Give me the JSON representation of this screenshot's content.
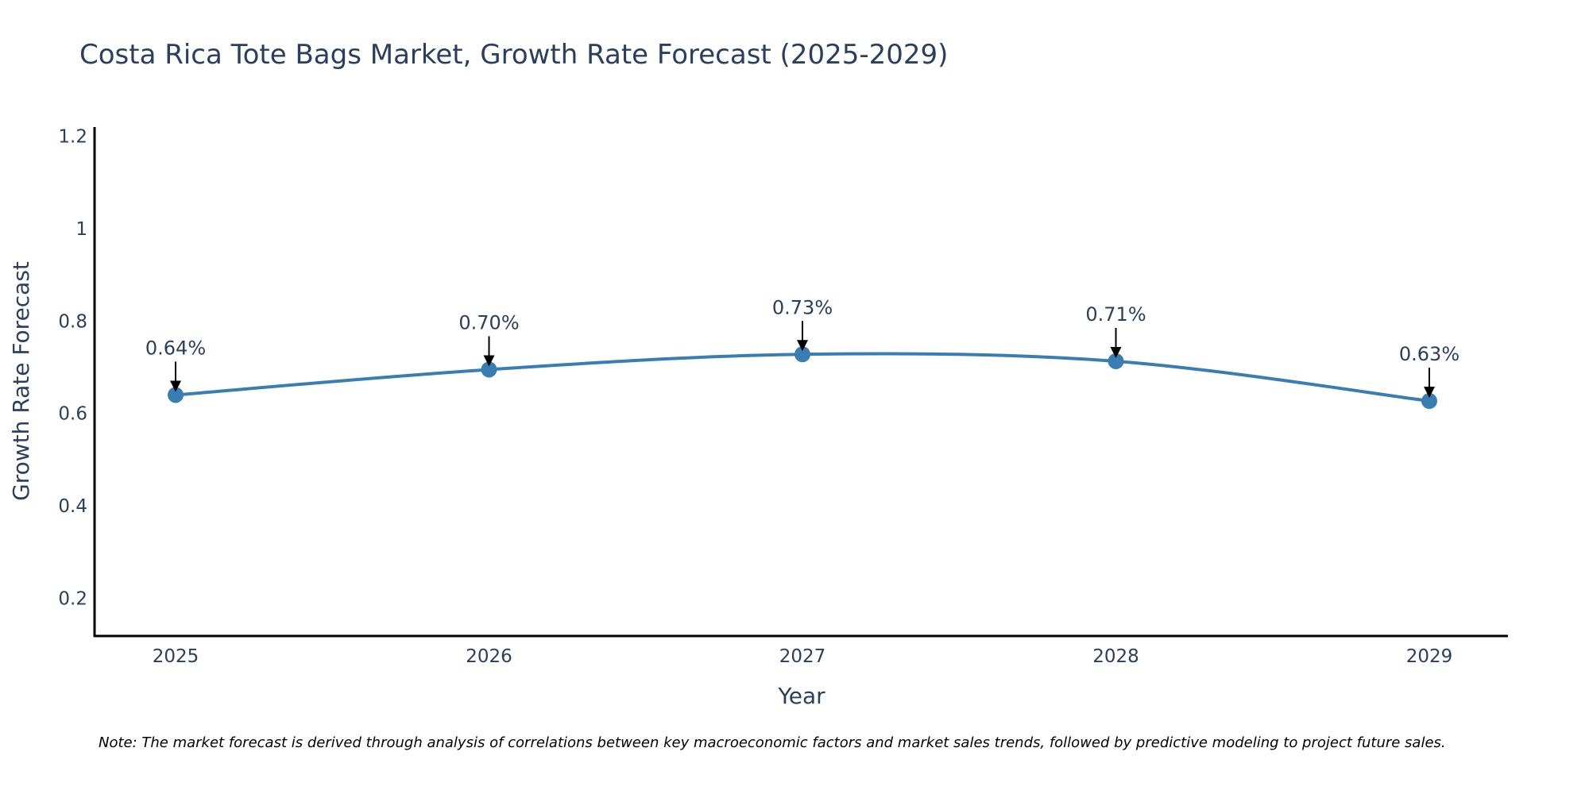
{
  "chart_data": {
    "type": "line",
    "title": "Costa Rica Tote Bags Market, Growth Rate Forecast (2025-2029)",
    "xlabel": "Year",
    "ylabel": "Growth Rate Forecast",
    "categories": [
      "2025",
      "2026",
      "2027",
      "2028",
      "2029"
    ],
    "series": [
      {
        "name": "Growth Rate Forecast",
        "values": [
          0.64,
          0.695,
          0.728,
          0.713,
          0.627
        ],
        "labels": [
          "0.64%",
          "0.70%",
          "0.73%",
          "0.71%",
          "0.63%"
        ],
        "color": "#3a7db3"
      }
    ],
    "ylim": [
      0.12,
      1.22
    ],
    "yticks": [
      0.2,
      0.4,
      0.6,
      0.8,
      1,
      1.2
    ],
    "ytick_labels": [
      "0.2",
      "0.4",
      "0.6",
      "0.8",
      "1",
      "1.2"
    ],
    "grid": false,
    "line_shape": "spline"
  },
  "note": "Note: The market forecast is derived through analysis of correlations between key macroeconomic factors and market sales trends, followed by predictive modeling to project future sales.",
  "colors": {
    "text": "#2a3f5f",
    "axis": "#000000",
    "line": "#3a7db3",
    "arrow": "#000000"
  }
}
